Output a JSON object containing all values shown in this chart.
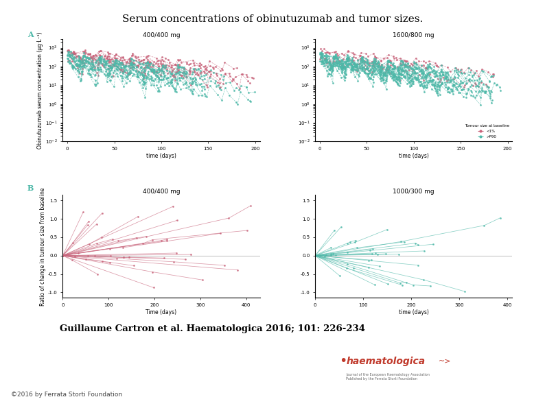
{
  "title": "Serum concentrations of obinutuzumab and tumor sizes.",
  "title_fontsize": 11,
  "title_fontweight": "normal",
  "citation": "Guillaume Cartron et al. Haematologica 2016; 101: 226-234",
  "citation_fontsize": 9.5,
  "citation_fontweight": "bold",
  "footer_text": "©2016 by Ferrata Storti Foundation",
  "footer_fontsize": 6.5,
  "background_color": "#ffffff",
  "panel_A_label": "A",
  "panel_B_label": "B",
  "panelA_left_title": "400/400 mg",
  "panelA_right_title": "1600/800 mg",
  "panelB_left_title": "400/400 mg",
  "panelB_right_title": "1000/300 mg",
  "panelA_ylabel": "Obinutuzumab serum concentration (µg·L⁻¹)",
  "panelA_xlabel": "time (days)",
  "panelB_ylabel": "Ratio of change in tumour size from baseline",
  "panelB_xlabel_left": "Time (days)",
  "panelB_xlabel_right": "time (days)",
  "panelA_left_xticks": [
    0,
    50,
    100,
    150,
    200
  ],
  "panelA_right_xticks": [
    0,
    50,
    100,
    150,
    200
  ],
  "panelB_left_xticks": [
    0,
    100,
    200,
    300,
    400
  ],
  "panelB_right_xticks": [
    0,
    100,
    200,
    300,
    400
  ],
  "panelB_yticks": [
    -1.0,
    -0.5,
    0.0,
    0.5,
    1.0,
    1.5
  ],
  "color_small_tumor": "#c8637a",
  "color_large_tumor": "#4db8a8",
  "legend_title": "Tumour size at baseline",
  "legend_labels": [
    "<1%",
    ">P90"
  ],
  "subplot_label_fontsize": 8,
  "subplot_title_fontsize": 6.5,
  "axis_fontsize": 5.5,
  "tick_fontsize": 5,
  "line_alpha": 0.65,
  "line_width": 0.5,
  "marker_size": 1.2
}
